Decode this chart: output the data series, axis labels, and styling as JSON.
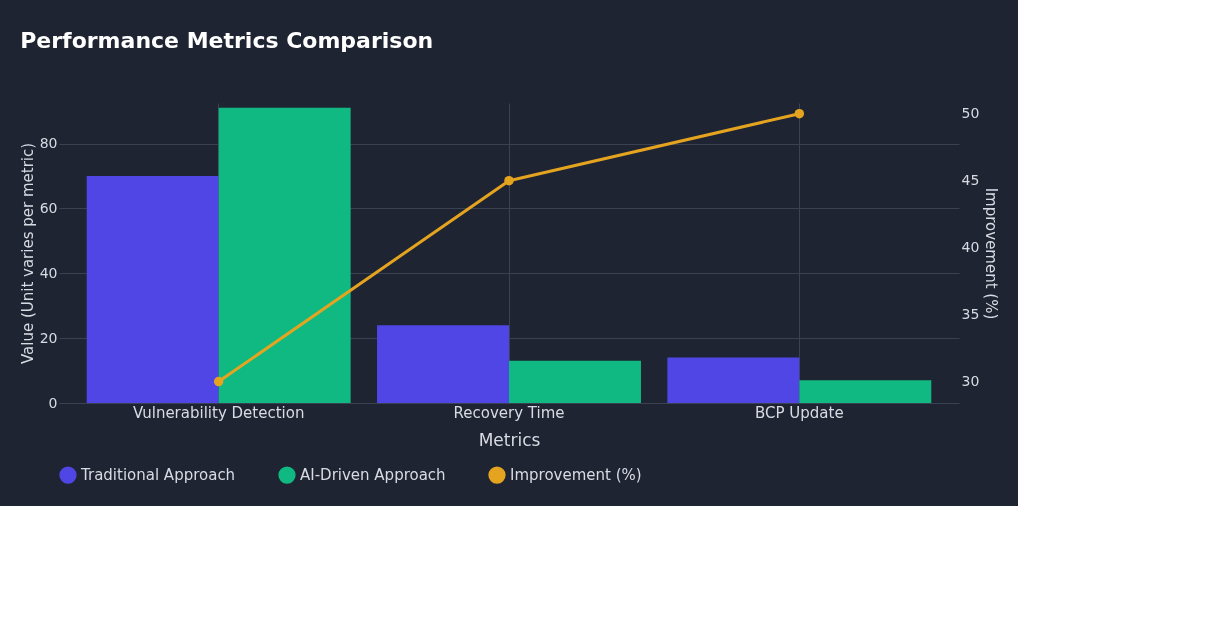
{
  "chart_data": {
    "type": "bar",
    "title": "Performance Metrics Comparison",
    "xlabel": "Metrics",
    "ylabel": "Value (Unit varies per metric)",
    "y2label": "Improvement (%)",
    "categories": [
      "Vulnerability Detection",
      "Recovery Time",
      "BCP Update"
    ],
    "series": [
      {
        "name": "Traditional Approach",
        "color": "#4f46e5",
        "values": [
          70,
          24,
          14
        ]
      },
      {
        "name": "AI-Driven Approach",
        "color": "#10b981",
        "values": [
          91,
          13,
          7
        ]
      },
      {
        "name": "Improvement (%)",
        "color": "#e5a41f",
        "type": "line",
        "axis": "y2",
        "values": [
          30,
          45,
          50
        ]
      }
    ],
    "ylim": [
      0,
      92.5
    ],
    "yticks": [
      0,
      20,
      40,
      60,
      80
    ],
    "y2lim": [
      28.4,
      50.8
    ],
    "y2ticks": [
      30,
      35,
      40,
      45,
      50
    ],
    "grid": true,
    "legend": "bottom",
    "marker": "circle"
  }
}
